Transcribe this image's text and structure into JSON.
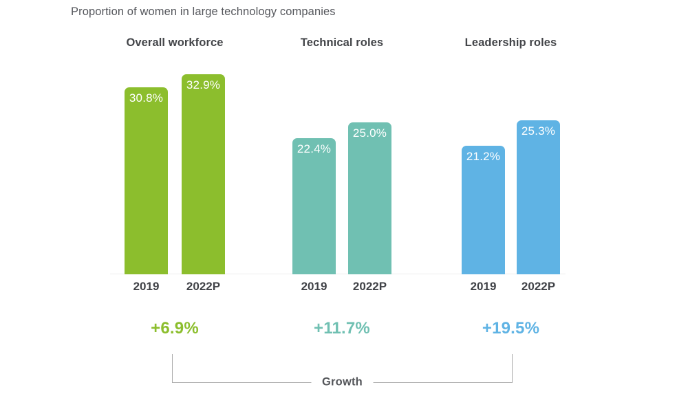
{
  "title": "Proportion of women in large technology companies",
  "chart_data": {
    "type": "bar",
    "title": "Proportion of women in large technology companies",
    "unit": "percent",
    "categories": [
      "2019",
      "2022P"
    ],
    "groups": [
      {
        "label": "Overall workforce",
        "color": "#8cbe2d",
        "values": [
          30.8,
          32.9
        ],
        "value_labels": [
          "30.8%",
          "32.9%"
        ],
        "growth_label": "+6.9%"
      },
      {
        "label": "Technical roles",
        "color": "#70c0b2",
        "values": [
          22.4,
          25.0
        ],
        "value_labels": [
          "22.4%",
          "25.0%"
        ],
        "growth_label": "+11.7%"
      },
      {
        "label": "Leadership roles",
        "color": "#5fb3e4",
        "values": [
          21.2,
          25.3
        ],
        "value_labels": [
          "21.2%",
          "25.3%"
        ],
        "growth_label": "+19.5%"
      }
    ],
    "footer_label": "Growth",
    "ylim": [
      0,
      35
    ],
    "grid": false,
    "legend": false,
    "value_labels_position": "inside-top",
    "bar_colors_by_group": [
      "#8cbe2d",
      "#70c0b2",
      "#5fb3e4"
    ]
  }
}
